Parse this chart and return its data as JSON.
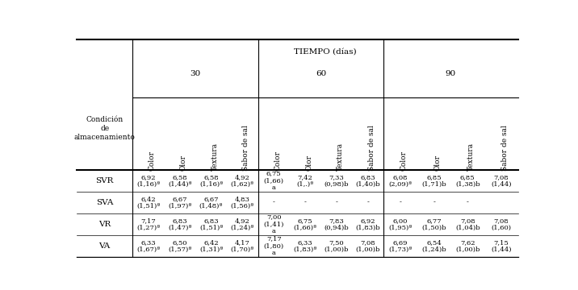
{
  "title": "TIEMPO (días)",
  "time_labels": [
    "30",
    "60",
    "90"
  ],
  "col_labels": [
    "Color",
    "Olor",
    "Textura",
    "Sabor de\nsal"
  ],
  "row_labels": [
    "SVR",
    "SVA",
    "VR",
    "VA"
  ],
  "cond_header": "Condición\nde\nalmacenamiento",
  "rows": [
    {
      "label": "SVR",
      "t30": [
        "6,92\n(1,16)ª",
        "6,58\n(1,44)ª",
        "6,58\n(1,16)ª",
        "4,92\n(1,62)ª"
      ],
      "t60": [
        "6,75\n(1,66)\na",
        "7,42\n(1,.)ª",
        "7,33\n(0,98)b",
        "6,83\n(1,40)b"
      ],
      "t90": [
        "6,08\n(2,09)ª",
        "6,85\n(1,71)b",
        "6,85\n(1,38)b",
        "7,08\n(1,44)"
      ]
    },
    {
      "label": "SVA",
      "t30": [
        "6,42\n(1,51)ª",
        "6,67\n(1,97)ª",
        "6,67\n(1,48)ª",
        "4,83\n(1,56)ª"
      ],
      "t60": [
        "-",
        "-",
        "-",
        "-"
      ],
      "t90": [
        "-",
        "-",
        "-",
        ""
      ]
    },
    {
      "label": "VR",
      "t30": [
        "7,17\n(1,27)ª",
        "6,83\n(1,47)ª",
        "6,83\n(1,51)ª",
        "4,92\n(1,24)ª"
      ],
      "t60": [
        "7,00\n(1,41)\na",
        "6,75\n(1,66)ª",
        "7,83\n(0,94)b",
        "6,92\n(1,83)b"
      ],
      "t90": [
        "6,00\n(1,95)ª",
        "6,77\n(1,50)b",
        "7,08\n(1,04)b",
        "7,08\n(1,60)"
      ]
    },
    {
      "label": "VA",
      "t30": [
        "6,33\n(1,67)ª",
        "6,50\n(1,57)ª",
        "6,42\n(1,31)ª",
        "4,17\n(1,70)ª"
      ],
      "t60": [
        "7,17\n(1,80)\na",
        "6,33\n(1,83)ª",
        "7,50\n(1,00)b",
        "7,08\n(1,00)b"
      ],
      "t90": [
        "6,69\n(1,73)ª",
        "6,54\n(1,24)b",
        "7,62\n(1,00)b",
        "7,15\n(1,44)"
      ]
    }
  ],
  "bg_color": "#ffffff",
  "text_color": "#000000",
  "line_color": "#000000",
  "bold_label_color": "#1a1a8c",
  "header_color": "#000000",
  "data_fontsize": 6.0,
  "label_fontsize": 7.5,
  "header_fontsize": 7.5,
  "col_header_fontsize": 6.5,
  "title_fontsize": 7.5
}
